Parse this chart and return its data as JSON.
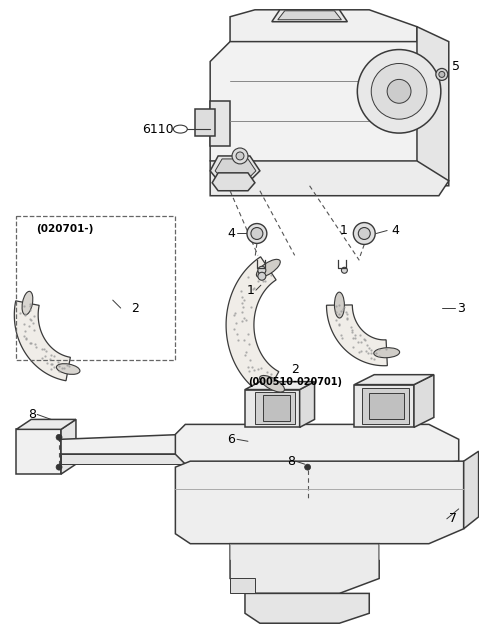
{
  "bg_color": "#ffffff",
  "lc": "#3a3a3a",
  "lc_light": "#666666",
  "label_color": "#000000",
  "figsize": [
    4.8,
    6.37
  ],
  "dpi": 100,
  "fs_label": 9,
  "fs_small": 7.5,
  "lw_main": 1.1,
  "lw_thin": 0.7,
  "lw_dash": 0.8
}
